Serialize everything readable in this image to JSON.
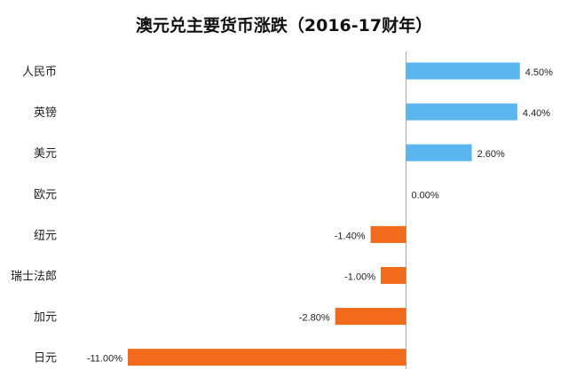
{
  "chart_data": {
    "type": "bar",
    "orientation": "horizontal",
    "title": "澳元兑主要货币涨跌（2016-17财年）",
    "categories": [
      "人民币",
      "英镑",
      "美元",
      "欧元",
      "纽元",
      "瑞士法郎",
      "加元",
      "日元"
    ],
    "values": [
      4.5,
      4.4,
      2.6,
      0.0,
      -1.4,
      -1.0,
      -2.8,
      -11.0
    ],
    "value_labels": [
      "4.50%",
      "4.40%",
      "2.60%",
      "0.00%",
      "-1.40%",
      "-1.00%",
      "-2.80%",
      "-11.00%"
    ],
    "unit": "%",
    "xlim": [
      -11.0,
      4.5
    ],
    "grid": false,
    "legend": "none",
    "colors": {
      "positive": "#5BB6F0",
      "negative": "#F26A1B",
      "axis": "#AAAAAA"
    }
  }
}
